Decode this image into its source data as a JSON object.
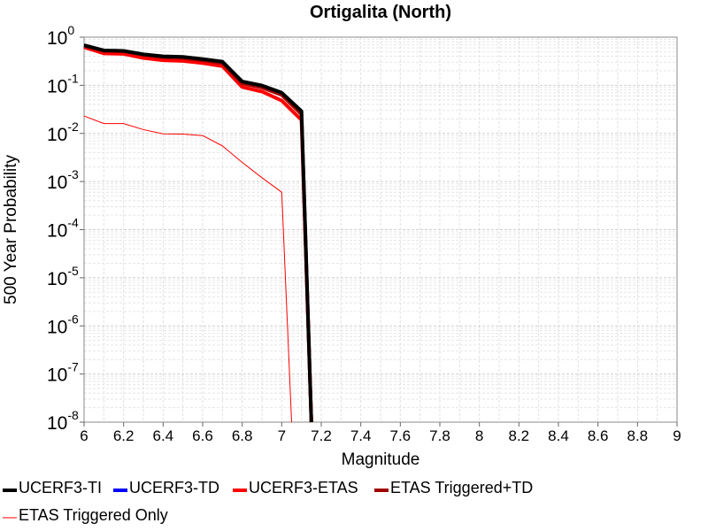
{
  "chart_data": {
    "type": "line",
    "title": "Ortigalita (North)",
    "xlabel": "Magnitude",
    "ylabel": "500 Year Probability",
    "xlim": [
      6,
      9
    ],
    "ylim": [
      1e-08,
      1
    ],
    "yscale": "log",
    "grid": true,
    "legend_position": "bottom",
    "x_ticks": [
      "6",
      "6.2",
      "6.4",
      "6.6",
      "6.8",
      "7",
      "7.2",
      "7.4",
      "7.6",
      "7.8",
      "8",
      "8.2",
      "8.4",
      "8.6",
      "8.8",
      "9"
    ],
    "y_ticks": [
      {
        "base": "10",
        "exp": "0"
      },
      {
        "base": "10",
        "exp": "-1"
      },
      {
        "base": "10",
        "exp": "-2"
      },
      {
        "base": "10",
        "exp": "-3"
      },
      {
        "base": "10",
        "exp": "-4"
      },
      {
        "base": "10",
        "exp": "-5"
      },
      {
        "base": "10",
        "exp": "-6"
      },
      {
        "base": "10",
        "exp": "-7"
      },
      {
        "base": "10",
        "exp": "-8"
      }
    ],
    "series": [
      {
        "name": "UCERF3-TI",
        "color": "#000000",
        "width": 4,
        "x": [
          6.0,
          6.1,
          6.2,
          6.3,
          6.4,
          6.5,
          6.6,
          6.7,
          6.8,
          6.9,
          7.0,
          7.1,
          7.15
        ],
        "y": [
          0.68,
          0.53,
          0.52,
          0.44,
          0.4,
          0.39,
          0.35,
          0.31,
          0.12,
          0.099,
          0.07,
          0.029,
          1e-08
        ]
      },
      {
        "name": "UCERF3-TD",
        "color": "#0000ff",
        "width": 3,
        "x": [
          6.0,
          6.1,
          6.2,
          6.3,
          6.4,
          6.5,
          6.6,
          6.7,
          6.8,
          6.9,
          7.0,
          7.1,
          7.15
        ],
        "y": [
          0.66,
          0.52,
          0.51,
          0.43,
          0.39,
          0.38,
          0.34,
          0.3,
          0.115,
          0.095,
          0.067,
          0.028,
          1e-08
        ]
      },
      {
        "name": "UCERF3-ETAS",
        "color": "#ff0000",
        "width": 4,
        "x": [
          6.0,
          6.1,
          6.2,
          6.3,
          6.4,
          6.5,
          6.6,
          6.7,
          6.8,
          6.9,
          7.0,
          7.1,
          7.15
        ],
        "y": [
          0.62,
          0.46,
          0.45,
          0.37,
          0.33,
          0.32,
          0.29,
          0.25,
          0.092,
          0.074,
          0.048,
          0.019,
          1e-08
        ]
      },
      {
        "name": "ETAS Triggered+TD",
        "color": "#a00000",
        "width": 4,
        "x": [
          6.0,
          6.1,
          6.2,
          6.3,
          6.4,
          6.5,
          6.6,
          6.7,
          6.8,
          6.9,
          7.0,
          7.1,
          7.15
        ],
        "y": [
          0.66,
          0.52,
          0.51,
          0.43,
          0.38,
          0.37,
          0.33,
          0.29,
          0.11,
          0.09,
          0.063,
          0.025,
          1e-08
        ]
      },
      {
        "name": "ETAS Triggered Only",
        "color": "#ff0000",
        "width": 1,
        "x": [
          6.0,
          6.1,
          6.2,
          6.3,
          6.4,
          6.5,
          6.6,
          6.7,
          6.8,
          6.9,
          7.0,
          7.05
        ],
        "y": [
          0.023,
          0.016,
          0.016,
          0.012,
          0.0098,
          0.0097,
          0.009,
          0.0055,
          0.0025,
          0.0012,
          0.0006,
          1e-08
        ]
      }
    ]
  }
}
